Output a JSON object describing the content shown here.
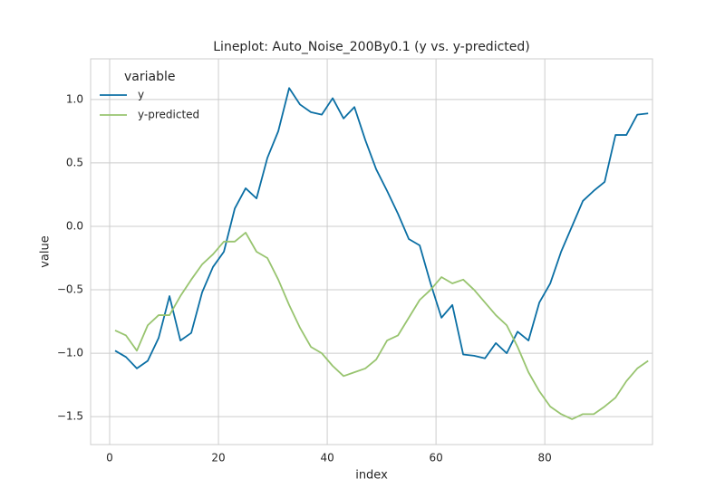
{
  "chart_data": {
    "type": "line",
    "title": "Lineplot: Auto_Noise_200By0.1 (y vs. y-predicted)",
    "x_label": "index",
    "y_label": "value",
    "legend_title": "variable",
    "legend_position": "upper left",
    "grid": true,
    "x": [
      1,
      3,
      5,
      7,
      9,
      11,
      13,
      15,
      17,
      19,
      21,
      23,
      25,
      27,
      29,
      31,
      33,
      35,
      37,
      39,
      41,
      43,
      45,
      47,
      49,
      51,
      53,
      55,
      57,
      59,
      61,
      63,
      65,
      67,
      69,
      71,
      73,
      75,
      77,
      79,
      81,
      83,
      85,
      87,
      89,
      91,
      93,
      95,
      97,
      99
    ],
    "series": [
      {
        "name": "y",
        "color": "#0b6fa4",
        "values": [
          -0.98,
          -1.03,
          -1.12,
          -1.06,
          -0.88,
          -0.55,
          -0.9,
          -0.84,
          -0.52,
          -0.32,
          -0.2,
          0.14,
          0.3,
          0.22,
          0.54,
          0.75,
          1.09,
          0.96,
          0.9,
          0.88,
          1.01,
          0.85,
          0.94,
          0.68,
          0.45,
          0.28,
          0.1,
          -0.1,
          -0.15,
          -0.45,
          -0.72,
          -0.62,
          -1.01,
          -1.02,
          -1.04,
          -0.92,
          -1.0,
          -0.83,
          -0.9,
          -0.6,
          -0.45,
          -0.2,
          0.0,
          0.2,
          0.28,
          0.35,
          0.72,
          0.72,
          0.88,
          0.89
        ]
      },
      {
        "name": "y-predicted",
        "color": "#98c46f",
        "values": [
          -0.82,
          -0.86,
          -0.98,
          -0.78,
          -0.7,
          -0.7,
          -0.55,
          -0.42,
          -0.3,
          -0.22,
          -0.12,
          -0.12,
          -0.05,
          -0.2,
          -0.25,
          -0.42,
          -0.62,
          -0.8,
          -0.95,
          -1.0,
          -1.1,
          -1.18,
          -1.15,
          -1.12,
          -1.05,
          -0.9,
          -0.86,
          -0.72,
          -0.58,
          -0.5,
          -0.4,
          -0.45,
          -0.42,
          -0.5,
          -0.6,
          -0.7,
          -0.78,
          -0.95,
          -1.15,
          -1.3,
          -1.42,
          -1.48,
          -1.52,
          -1.48,
          -1.48,
          -1.42,
          -1.35,
          -1.22,
          -1.12,
          -1.06
        ]
      }
    ],
    "xlim": [
      -3.5,
      99.8
    ],
    "xticks": [
      0,
      20,
      40,
      60,
      80
    ],
    "ylim": [
      -1.72,
      1.32
    ],
    "yticks": [
      {
        "value": -1.5,
        "label": "−1.5"
      },
      {
        "value": -1.0,
        "label": "−1.0"
      },
      {
        "value": -0.5,
        "label": "−0.5"
      },
      {
        "value": 0,
        "label": "0.0"
      },
      0.5,
      {
        "value": 1.0,
        "label": "1.0"
      }
    ]
  }
}
